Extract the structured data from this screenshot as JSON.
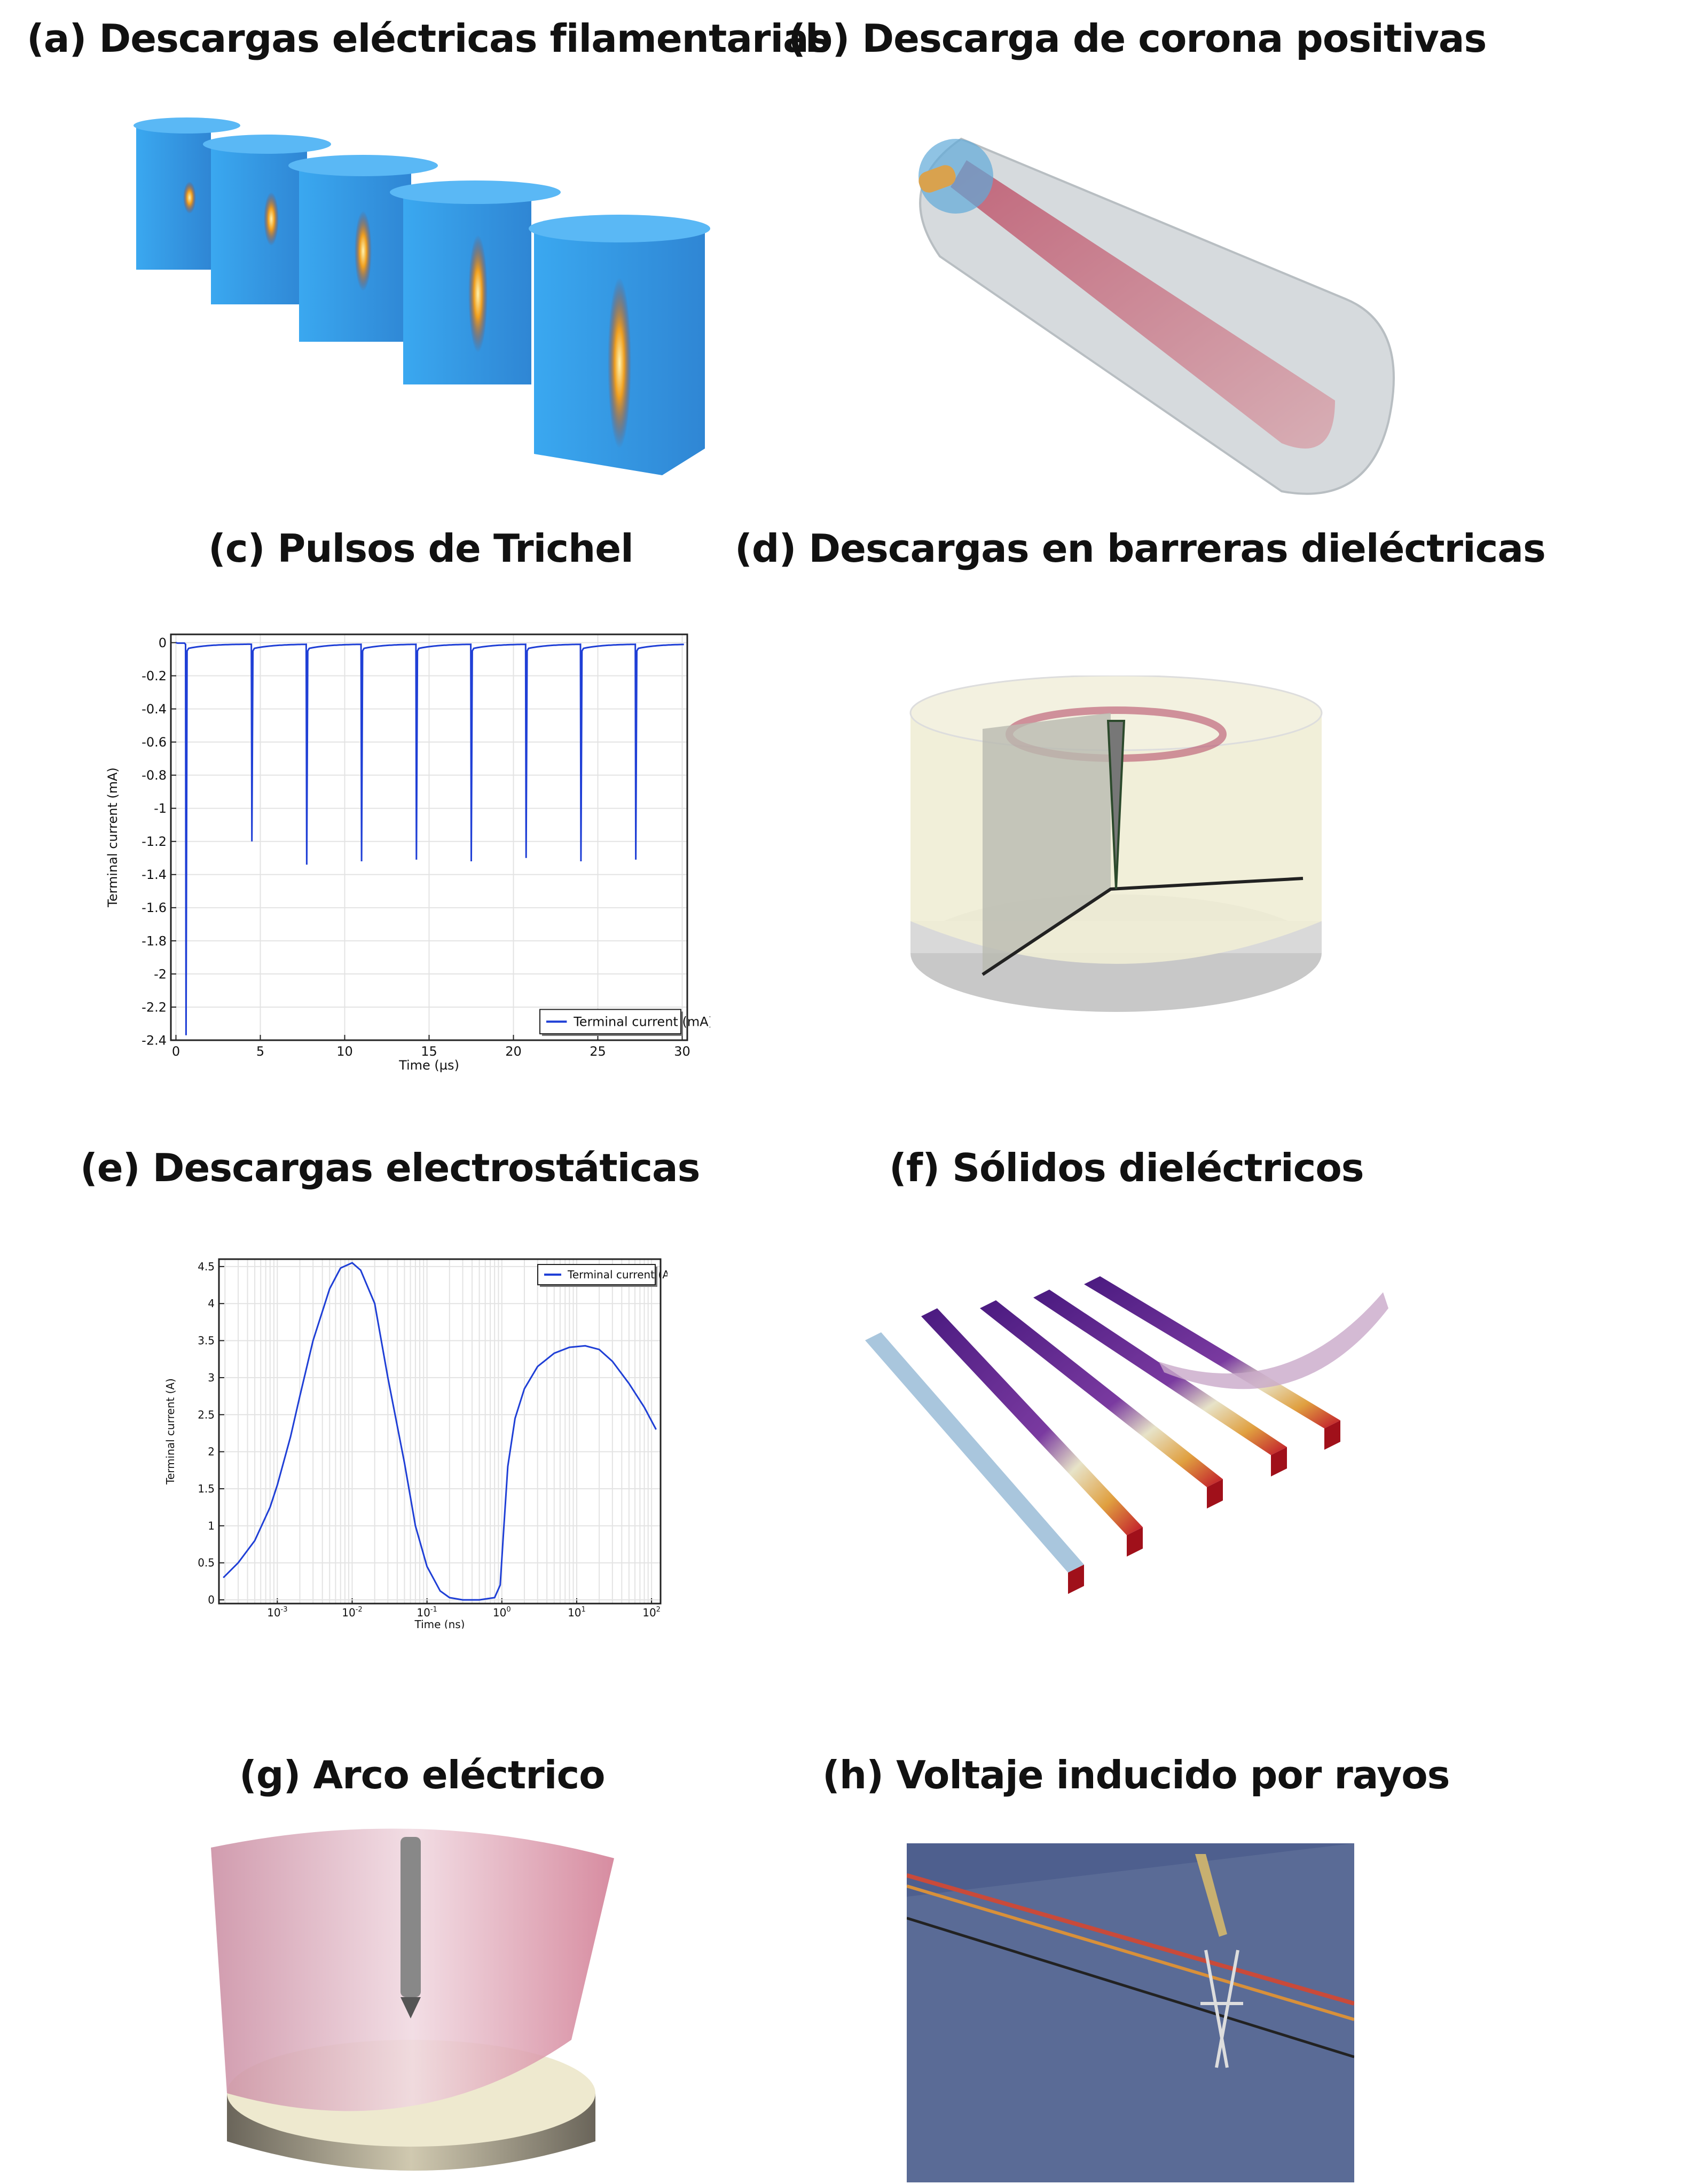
{
  "panels": {
    "a": {
      "title": "(a) Descargas eléctricas filamentarias"
    },
    "b": {
      "title": "(b) Descarga de corona positivas"
    },
    "c": {
      "title": "(c) Pulsos de Trichel"
    },
    "d": {
      "title": "(d) Descargas en barreras dieléctricas"
    },
    "e": {
      "title": "(e) Descargas electrostáticas"
    },
    "f": {
      "title": "(f) Sólidos dieléctricos"
    },
    "g": {
      "title": "(g) Arco eléctrico"
    },
    "h": {
      "title": "(h) Voltaje inducido por rayos"
    }
  },
  "chart_data": [
    {
      "type": "line",
      "panel": "c",
      "xlabel": "Time (µs)",
      "ylabel": "Terminal current (mA)",
      "xlim": [
        -0.3,
        30.3
      ],
      "ylim": [
        -2.4,
        0.05
      ],
      "xticks": [
        0,
        5,
        10,
        15,
        20,
        25,
        30
      ],
      "yticks": [
        0,
        -0.2,
        -0.4,
        -0.6,
        -0.8,
        -1,
        -1.2,
        -1.4,
        -1.6,
        -1.8,
        -2,
        -2.2,
        -2.4
      ],
      "grid": true,
      "legend": "bottom-right",
      "color": "#1f3fd6",
      "series": [
        {
          "name": "Terminal current (mA)",
          "pulses": [
            {
              "t": 0.6,
              "peak": -2.37
            },
            {
              "t": 4.5,
              "peak": -1.2
            },
            {
              "t": 7.75,
              "peak": -1.34
            },
            {
              "t": 11.0,
              "peak": -1.32
            },
            {
              "t": 14.25,
              "peak": -1.31
            },
            {
              "t": 17.5,
              "peak": -1.32
            },
            {
              "t": 20.75,
              "peak": -1.3
            },
            {
              "t": 24.0,
              "peak": -1.32
            },
            {
              "t": 27.25,
              "peak": -1.31
            }
          ],
          "x_end": 30.2
        }
      ]
    },
    {
      "type": "line",
      "panel": "e",
      "xscale": "log",
      "xlabel": "Time (ns)",
      "ylabel": "Terminal current (A)",
      "xlim": [
        0.000166,
        132
      ],
      "ylim": [
        -0.05,
        4.6
      ],
      "xticks": [
        "10-3",
        "10-2",
        "10-1",
        "100",
        "101",
        "102"
      ],
      "yticks": [
        0,
        0.5,
        1,
        1.5,
        2,
        2.5,
        3,
        3.5,
        4,
        4.5
      ],
      "grid": true,
      "legend": "top-right",
      "color": "#1f3fd6",
      "series": [
        {
          "name": "Terminal current (A)",
          "x": [
            0.00019,
            0.0003,
            0.0005,
            0.0008,
            0.001,
            0.0015,
            0.002,
            0.003,
            0.005,
            0.007,
            0.01,
            0.013,
            0.02,
            0.03,
            0.05,
            0.07,
            0.1,
            0.15,
            0.2,
            0.3,
            0.5,
            0.8,
            0.95,
            1.05,
            1.2,
            1.5,
            2,
            3,
            5,
            8,
            13,
            20,
            30,
            50,
            80,
            115
          ],
          "y": [
            0.3,
            0.5,
            0.8,
            1.25,
            1.55,
            2.2,
            2.75,
            3.5,
            4.2,
            4.48,
            4.55,
            4.45,
            4.0,
            3.0,
            1.85,
            1.0,
            0.45,
            0.12,
            0.03,
            0.0,
            0.0,
            0.03,
            0.2,
            0.9,
            1.8,
            2.45,
            2.85,
            3.15,
            3.33,
            3.41,
            3.43,
            3.38,
            3.22,
            2.92,
            2.6,
            2.3
          ]
        }
      ]
    }
  ]
}
